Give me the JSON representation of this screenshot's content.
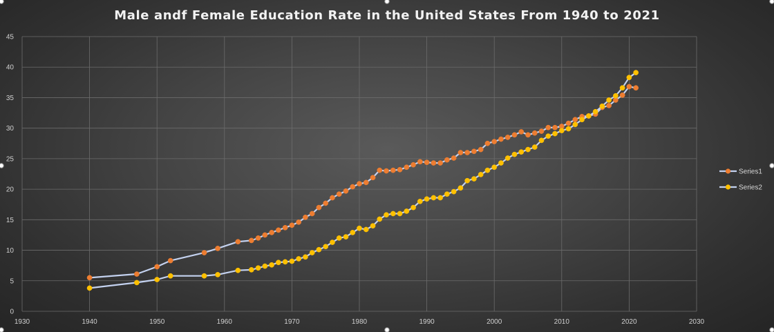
{
  "chart_data": {
    "type": "line",
    "title": "Male andf Female Education Rate in the United States From 1940 to 2021",
    "xlabel": "",
    "ylabel": "",
    "xlim": [
      1930,
      2030
    ],
    "ylim": [
      0,
      45
    ],
    "x_ticks": [
      1930,
      1940,
      1950,
      1960,
      1970,
      1980,
      1990,
      2000,
      2010,
      2020,
      2030
    ],
    "y_ticks": [
      0,
      5,
      10,
      15,
      20,
      25,
      30,
      35,
      40,
      45
    ],
    "grid": true,
    "legend_position": "right",
    "x": [
      1940,
      1947,
      1950,
      1952,
      1957,
      1959,
      1962,
      1964,
      1965,
      1966,
      1967,
      1968,
      1969,
      1970,
      1971,
      1972,
      1973,
      1974,
      1975,
      1976,
      1977,
      1978,
      1979,
      1980,
      1981,
      1982,
      1983,
      1984,
      1985,
      1986,
      1987,
      1988,
      1989,
      1990,
      1991,
      1992,
      1993,
      1994,
      1995,
      1996,
      1997,
      1998,
      1999,
      2000,
      2001,
      2002,
      2003,
      2004,
      2005,
      2006,
      2007,
      2008,
      2009,
      2010,
      2011,
      2012,
      2013,
      2014,
      2015,
      2016,
      2017,
      2018,
      2019,
      2020,
      2021
    ],
    "series": [
      {
        "name": "Series1",
        "color": "#ED7D31",
        "values": [
          5.5,
          6.1,
          7.3,
          8.3,
          9.6,
          10.3,
          11.4,
          11.6,
          12.0,
          12.5,
          12.9,
          13.3,
          13.7,
          14.1,
          14.6,
          15.4,
          16.0,
          17.0,
          17.7,
          18.6,
          19.2,
          19.7,
          20.4,
          20.9,
          21.1,
          21.9,
          23.1,
          23.0,
          23.1,
          23.2,
          23.6,
          24.0,
          24.5,
          24.4,
          24.3,
          24.3,
          24.8,
          25.1,
          26.0,
          26.0,
          26.2,
          26.5,
          27.5,
          27.8,
          28.2,
          28.5,
          28.9,
          29.4,
          28.9,
          29.2,
          29.5,
          30.1,
          30.1,
          30.3,
          30.8,
          31.4,
          31.9,
          32.0,
          32.3,
          33.4,
          33.7,
          34.6,
          35.4,
          36.8,
          36.6
        ]
      },
      {
        "name": "Series2",
        "color": "#FFC000",
        "values": [
          3.8,
          4.7,
          5.2,
          5.8,
          5.8,
          6.0,
          6.7,
          6.8,
          7.1,
          7.4,
          7.6,
          8.0,
          8.1,
          8.2,
          8.6,
          8.9,
          9.6,
          10.1,
          10.6,
          11.3,
          12.0,
          12.2,
          12.9,
          13.6,
          13.4,
          14.0,
          15.1,
          15.8,
          16.0,
          16.0,
          16.4,
          17.0,
          18.0,
          18.4,
          18.6,
          18.6,
          19.2,
          19.6,
          20.2,
          21.4,
          21.7,
          22.4,
          23.1,
          23.6,
          24.3,
          25.1,
          25.7,
          26.1,
          26.5,
          26.9,
          28.0,
          28.7,
          29.1,
          29.6,
          29.9,
          30.6,
          31.4,
          32.0,
          32.7,
          33.6,
          34.6,
          35.3,
          36.6,
          38.3,
          39.1
        ]
      }
    ],
    "line_color": "#c4d2f0"
  }
}
